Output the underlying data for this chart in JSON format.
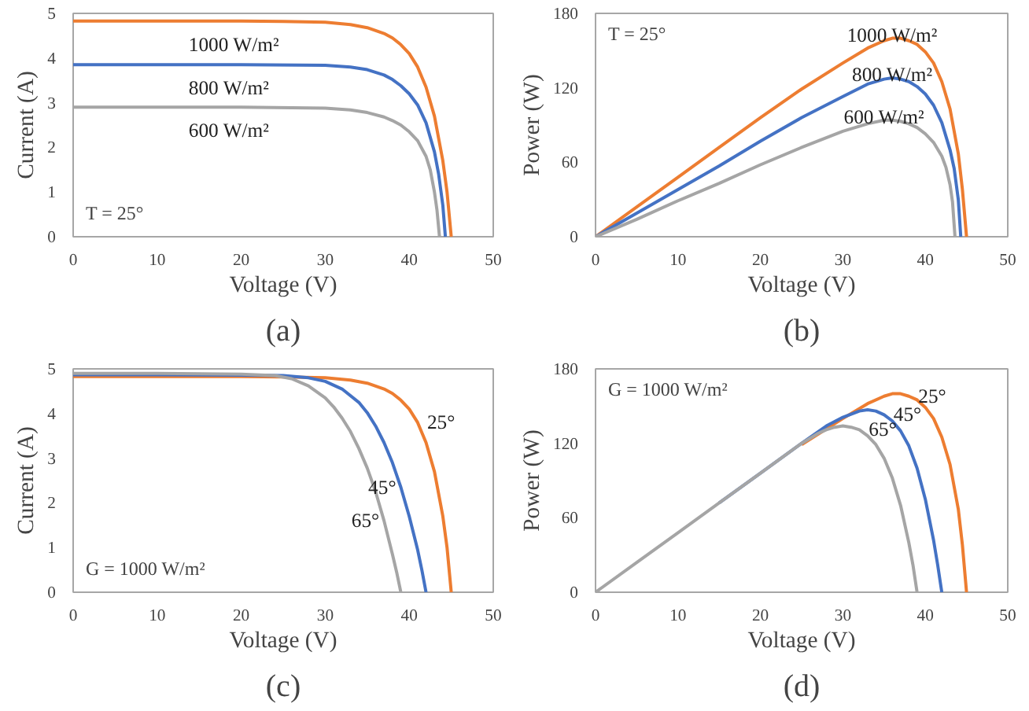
{
  "chart_data": [
    {
      "type": "line",
      "title": "(a)",
      "xlabel": "Voltage (V)",
      "ylabel": "Current (A)",
      "xlim": [
        0,
        50
      ],
      "xticks": [
        0,
        10,
        20,
        30,
        40,
        50
      ],
      "ylim": [
        0,
        5
      ],
      "yticks": [
        0,
        1,
        2,
        3,
        4,
        5
      ],
      "grid": false,
      "legend": false,
      "annotations": [
        "T = 25°"
      ],
      "series": [
        {
          "name": "1000 W/m²",
          "color": "#ed7d31",
          "x": [
            0,
            10,
            20,
            25,
            30,
            33,
            35,
            37,
            38,
            39,
            40,
            41,
            42,
            43,
            44,
            44.5,
            45
          ],
          "values": [
            4.83,
            4.83,
            4.83,
            4.82,
            4.8,
            4.75,
            4.68,
            4.55,
            4.45,
            4.3,
            4.1,
            3.8,
            3.35,
            2.7,
            1.7,
            1.0,
            0
          ]
        },
        {
          "name": "800 W/m²",
          "color": "#4472c4",
          "x": [
            0,
            10,
            20,
            30,
            33,
            35,
            37,
            38,
            39,
            40,
            41,
            42,
            43,
            43.5,
            44,
            44.3
          ],
          "values": [
            3.85,
            3.85,
            3.85,
            3.84,
            3.8,
            3.74,
            3.62,
            3.52,
            3.38,
            3.2,
            2.95,
            2.55,
            1.9,
            1.4,
            0.7,
            0
          ]
        },
        {
          "name": "600 W/m²",
          "color": "#a5a5a5",
          "x": [
            0,
            10,
            20,
            30,
            33,
            35,
            37,
            38,
            39,
            40,
            41,
            42,
            42.5,
            43,
            43.3,
            43.6
          ],
          "values": [
            2.9,
            2.9,
            2.9,
            2.88,
            2.84,
            2.78,
            2.68,
            2.6,
            2.5,
            2.35,
            2.15,
            1.8,
            1.5,
            1.0,
            0.6,
            0
          ]
        }
      ]
    },
    {
      "type": "line",
      "title": "(b)",
      "xlabel": "Voltage (V)",
      "ylabel": "Power (W)",
      "xlim": [
        0,
        50
      ],
      "xticks": [
        0,
        10,
        20,
        30,
        40,
        50
      ],
      "ylim": [
        0,
        180
      ],
      "yticks": [
        0,
        60,
        120,
        180
      ],
      "grid": false,
      "legend": false,
      "annotations": [
        "T = 25°"
      ],
      "series": [
        {
          "name": "1000 W/m²",
          "color": "#ed7d31",
          "x": [
            0,
            5,
            10,
            15,
            20,
            25,
            30,
            33,
            35,
            36,
            37,
            38,
            39,
            40,
            41,
            42,
            43,
            44,
            44.5,
            45
          ],
          "values": [
            0,
            24,
            48,
            72,
            96,
            119,
            140,
            152,
            158,
            160,
            160,
            158,
            155,
            149,
            140,
            125,
            103,
            67,
            38,
            0
          ]
        },
        {
          "name": "800 W/m²",
          "color": "#4472c4",
          "x": [
            0,
            5,
            10,
            15,
            20,
            25,
            30,
            33,
            35,
            36,
            37,
            38,
            39,
            40,
            41,
            42,
            43,
            43.5,
            44,
            44.3
          ],
          "values": [
            0,
            19,
            38,
            57,
            77,
            96,
            113,
            123,
            127,
            128,
            127,
            125,
            121,
            115,
            106,
            92,
            70,
            55,
            30,
            0
          ]
        },
        {
          "name": "600 W/m²",
          "color": "#a5a5a5",
          "x": [
            0,
            5,
            10,
            15,
            20,
            25,
            30,
            33,
            35,
            36,
            37,
            38,
            39,
            40,
            41,
            42,
            42.5,
            43,
            43.3,
            43.6
          ],
          "values": [
            0,
            14,
            29,
            43,
            58,
            72,
            85,
            91,
            94,
            94,
            93,
            91,
            88,
            83,
            76,
            65,
            56,
            42,
            28,
            0
          ]
        }
      ]
    },
    {
      "type": "line",
      "title": "(c)",
      "xlabel": "Voltage (V)",
      "ylabel": "Current (A)",
      "xlim": [
        0,
        50
      ],
      "xticks": [
        0,
        10,
        20,
        30,
        40,
        50
      ],
      "ylim": [
        0,
        5
      ],
      "yticks": [
        0,
        1,
        2,
        3,
        4,
        5
      ],
      "grid": false,
      "legend": false,
      "annotations": [
        "G = 1000 W/m²"
      ],
      "series": [
        {
          "name": "25°",
          "color": "#ed7d31",
          "x": [
            0,
            10,
            20,
            25,
            30,
            33,
            35,
            37,
            38,
            39,
            40,
            41,
            42,
            43,
            44,
            44.5,
            45
          ],
          "values": [
            4.83,
            4.83,
            4.83,
            4.82,
            4.8,
            4.75,
            4.68,
            4.55,
            4.45,
            4.3,
            4.1,
            3.8,
            3.35,
            2.7,
            1.7,
            1.0,
            0
          ]
        },
        {
          "name": "45°",
          "color": "#4472c4",
          "x": [
            0,
            10,
            20,
            25,
            28,
            30,
            32,
            34,
            35,
            36,
            37,
            38,
            39,
            40,
            41,
            41.5,
            42
          ],
          "values": [
            4.87,
            4.87,
            4.86,
            4.85,
            4.8,
            4.72,
            4.55,
            4.25,
            4.02,
            3.72,
            3.35,
            2.9,
            2.35,
            1.7,
            0.95,
            0.5,
            0
          ]
        },
        {
          "name": "65°",
          "color": "#a5a5a5",
          "x": [
            0,
            10,
            20,
            24,
            26,
            28,
            30,
            31,
            32,
            33,
            34,
            35,
            36,
            37,
            38,
            38.5,
            39
          ],
          "values": [
            4.9,
            4.9,
            4.88,
            4.85,
            4.78,
            4.62,
            4.35,
            4.15,
            3.9,
            3.6,
            3.22,
            2.78,
            2.25,
            1.6,
            0.85,
            0.45,
            0
          ]
        }
      ]
    },
    {
      "type": "line",
      "title": "(d)",
      "xlabel": "Voltage (V)",
      "ylabel": "Power (W)",
      "xlim": [
        0,
        50
      ],
      "xticks": [
        0,
        10,
        20,
        30,
        40,
        50
      ],
      "ylim": [
        0,
        180
      ],
      "yticks": [
        0,
        60,
        120,
        180
      ],
      "grid": false,
      "legend": false,
      "annotations": [
        "G = 1000 W/m²"
      ],
      "series": [
        {
          "name": "25°",
          "color": "#ed7d31",
          "x": [
            25,
            30,
            33,
            35,
            36,
            37,
            38,
            39,
            40,
            41,
            42,
            43,
            44,
            44.5,
            45
          ],
          "values": [
            119,
            140,
            152,
            158,
            160,
            160,
            158,
            155,
            149,
            140,
            125,
            103,
            67,
            38,
            0
          ]
        },
        {
          "name": "45°",
          "color": "#4472c4",
          "x": [
            15,
            20,
            25,
            28,
            30,
            32,
            33,
            34,
            35,
            36,
            37,
            38,
            39,
            40,
            41,
            41.5,
            42
          ],
          "values": [
            72,
            96,
            120,
            134,
            141,
            146,
            147,
            146,
            143,
            138,
            130,
            118,
            100,
            75,
            42,
            22,
            0
          ]
        },
        {
          "name": "65°",
          "color": "#a5a5a5",
          "x": [
            0,
            5,
            10,
            15,
            20,
            25,
            27,
            28,
            29,
            30,
            31,
            32,
            33,
            34,
            35,
            36,
            37,
            38,
            38.5,
            39
          ],
          "values": [
            0,
            24,
            48,
            72,
            96,
            120,
            128,
            131,
            133,
            134,
            133,
            131,
            126,
            119,
            108,
            92,
            70,
            40,
            22,
            0
          ]
        }
      ]
    }
  ]
}
